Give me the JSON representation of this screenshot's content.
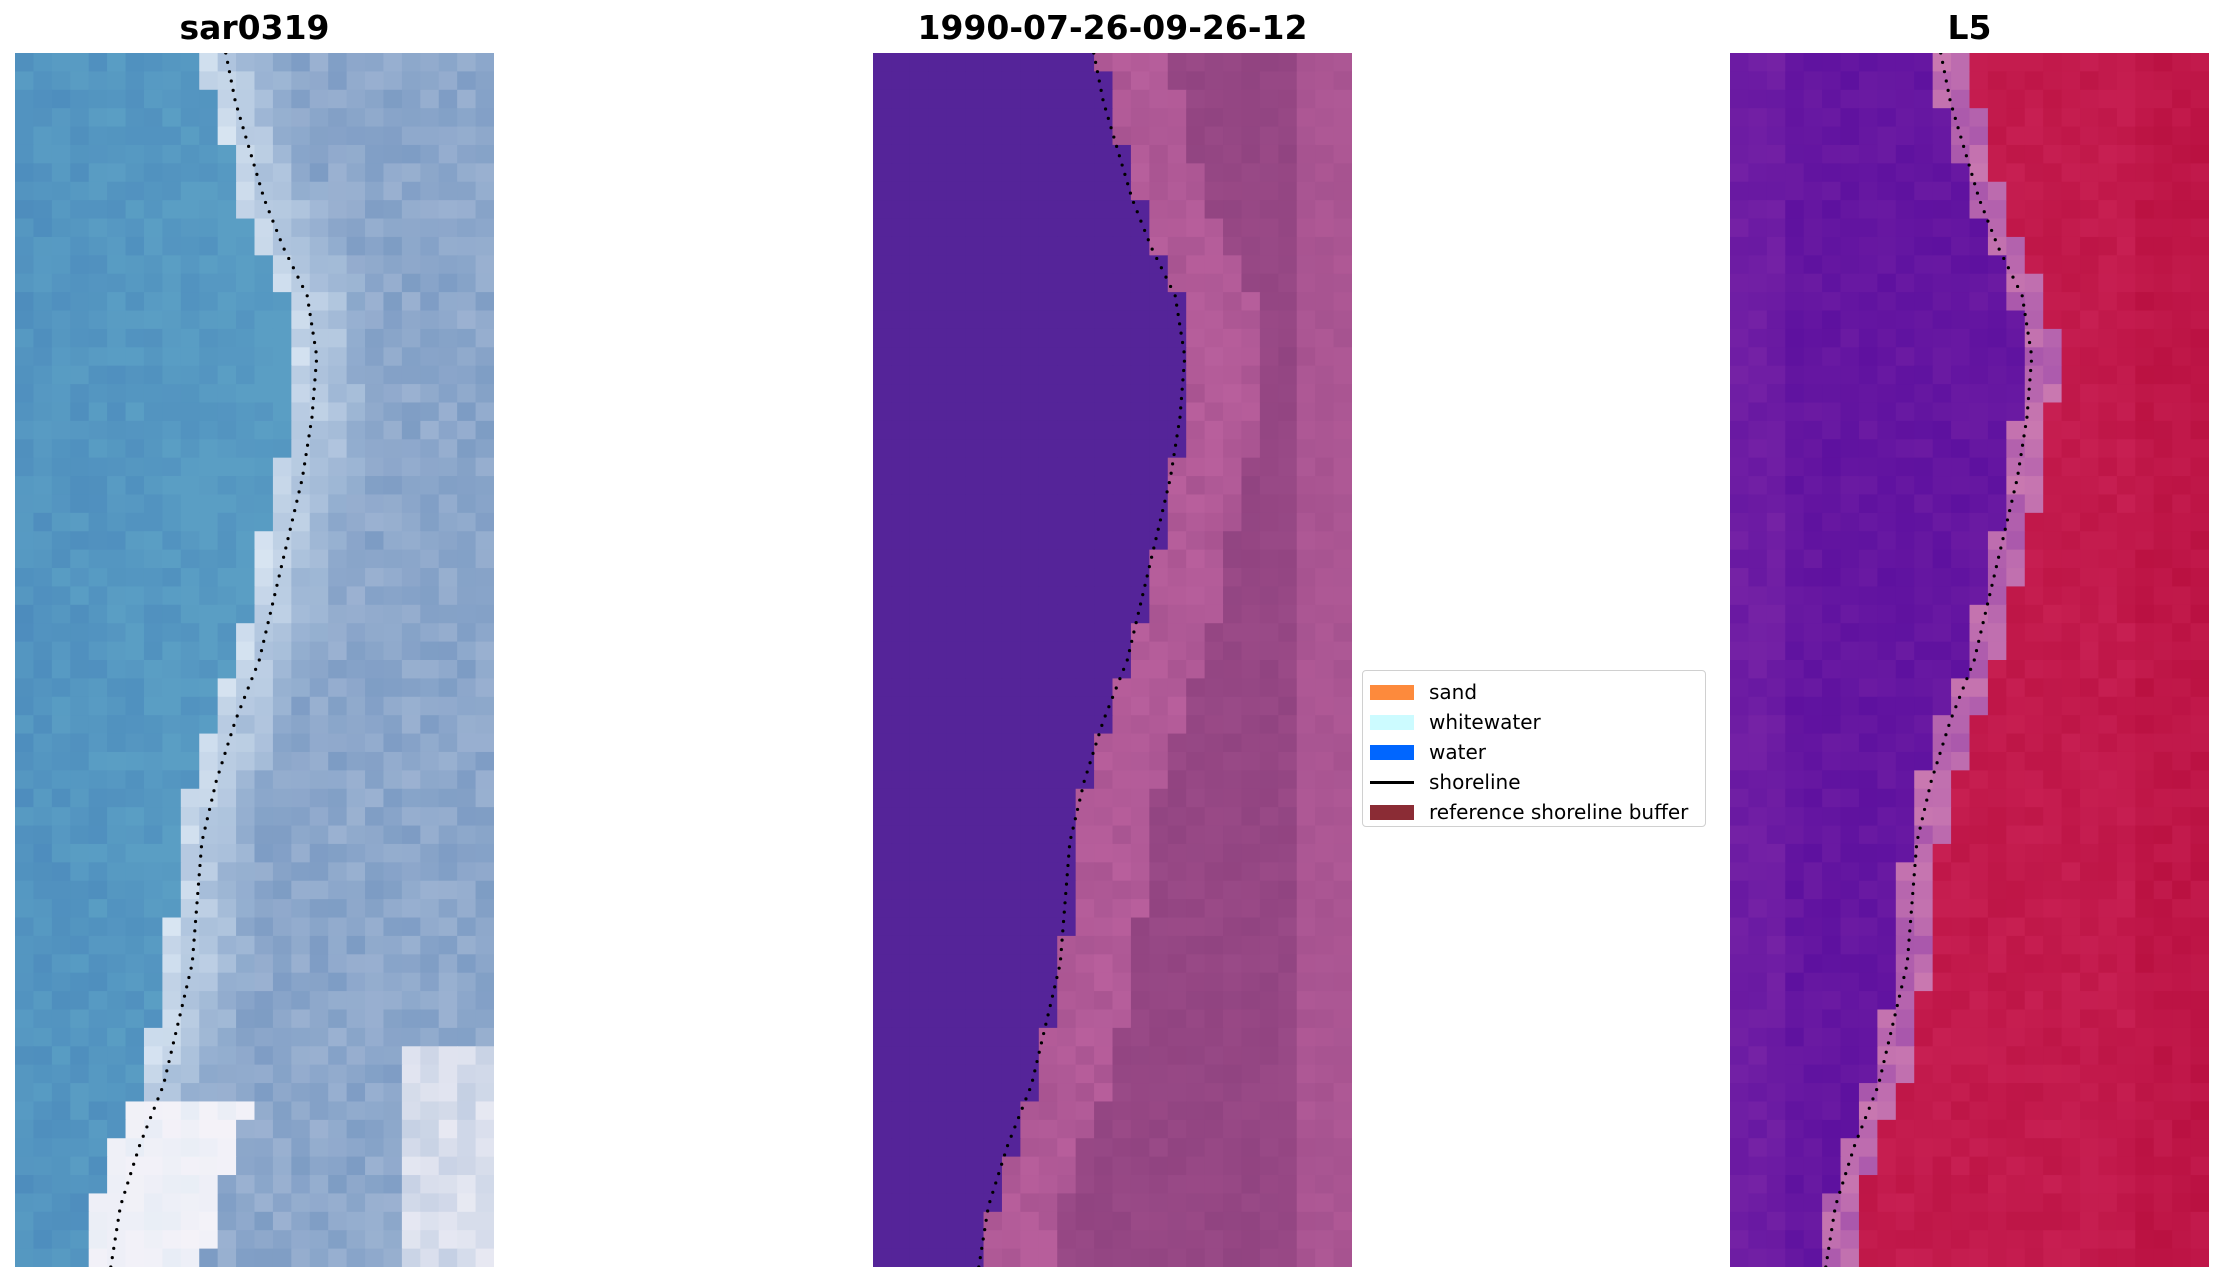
{
  "panels": [
    {
      "title": "sar0319",
      "style": "rgb",
      "colors": {
        "sea": "#5a9ec4",
        "sea_dark": "#4d8cbd",
        "foam": "#dce8f4",
        "land": "#7d9cc4",
        "white": "#f4f2f8"
      }
    },
    {
      "title": "1990-07-26-09-26-12",
      "style": "classified",
      "colors": {
        "water": "#552499",
        "sand_light": "#b85f9c",
        "sand_dark": "#8a3f7c"
      }
    },
    {
      "title": "L5",
      "style": "index",
      "colors": {
        "water": "#5e119f",
        "water_light": "#7824a6",
        "land": "#c71f52",
        "land_dark": "#b80f3f",
        "edge": "#c978b0"
      }
    }
  ],
  "shoreline_color": "#000000",
  "legend": {
    "items": [
      {
        "label": "sand",
        "color": "#fd8a3c",
        "kind": "patch"
      },
      {
        "label": "whitewater",
        "color": "#ccfbff",
        "kind": "patch"
      },
      {
        "label": "water",
        "color": "#0066ff",
        "kind": "patch"
      },
      {
        "label": "shoreline",
        "color": "#000000",
        "kind": "line"
      },
      {
        "label": "reference shoreline buffer",
        "color": "#8b2c35",
        "kind": "patch"
      }
    ]
  }
}
